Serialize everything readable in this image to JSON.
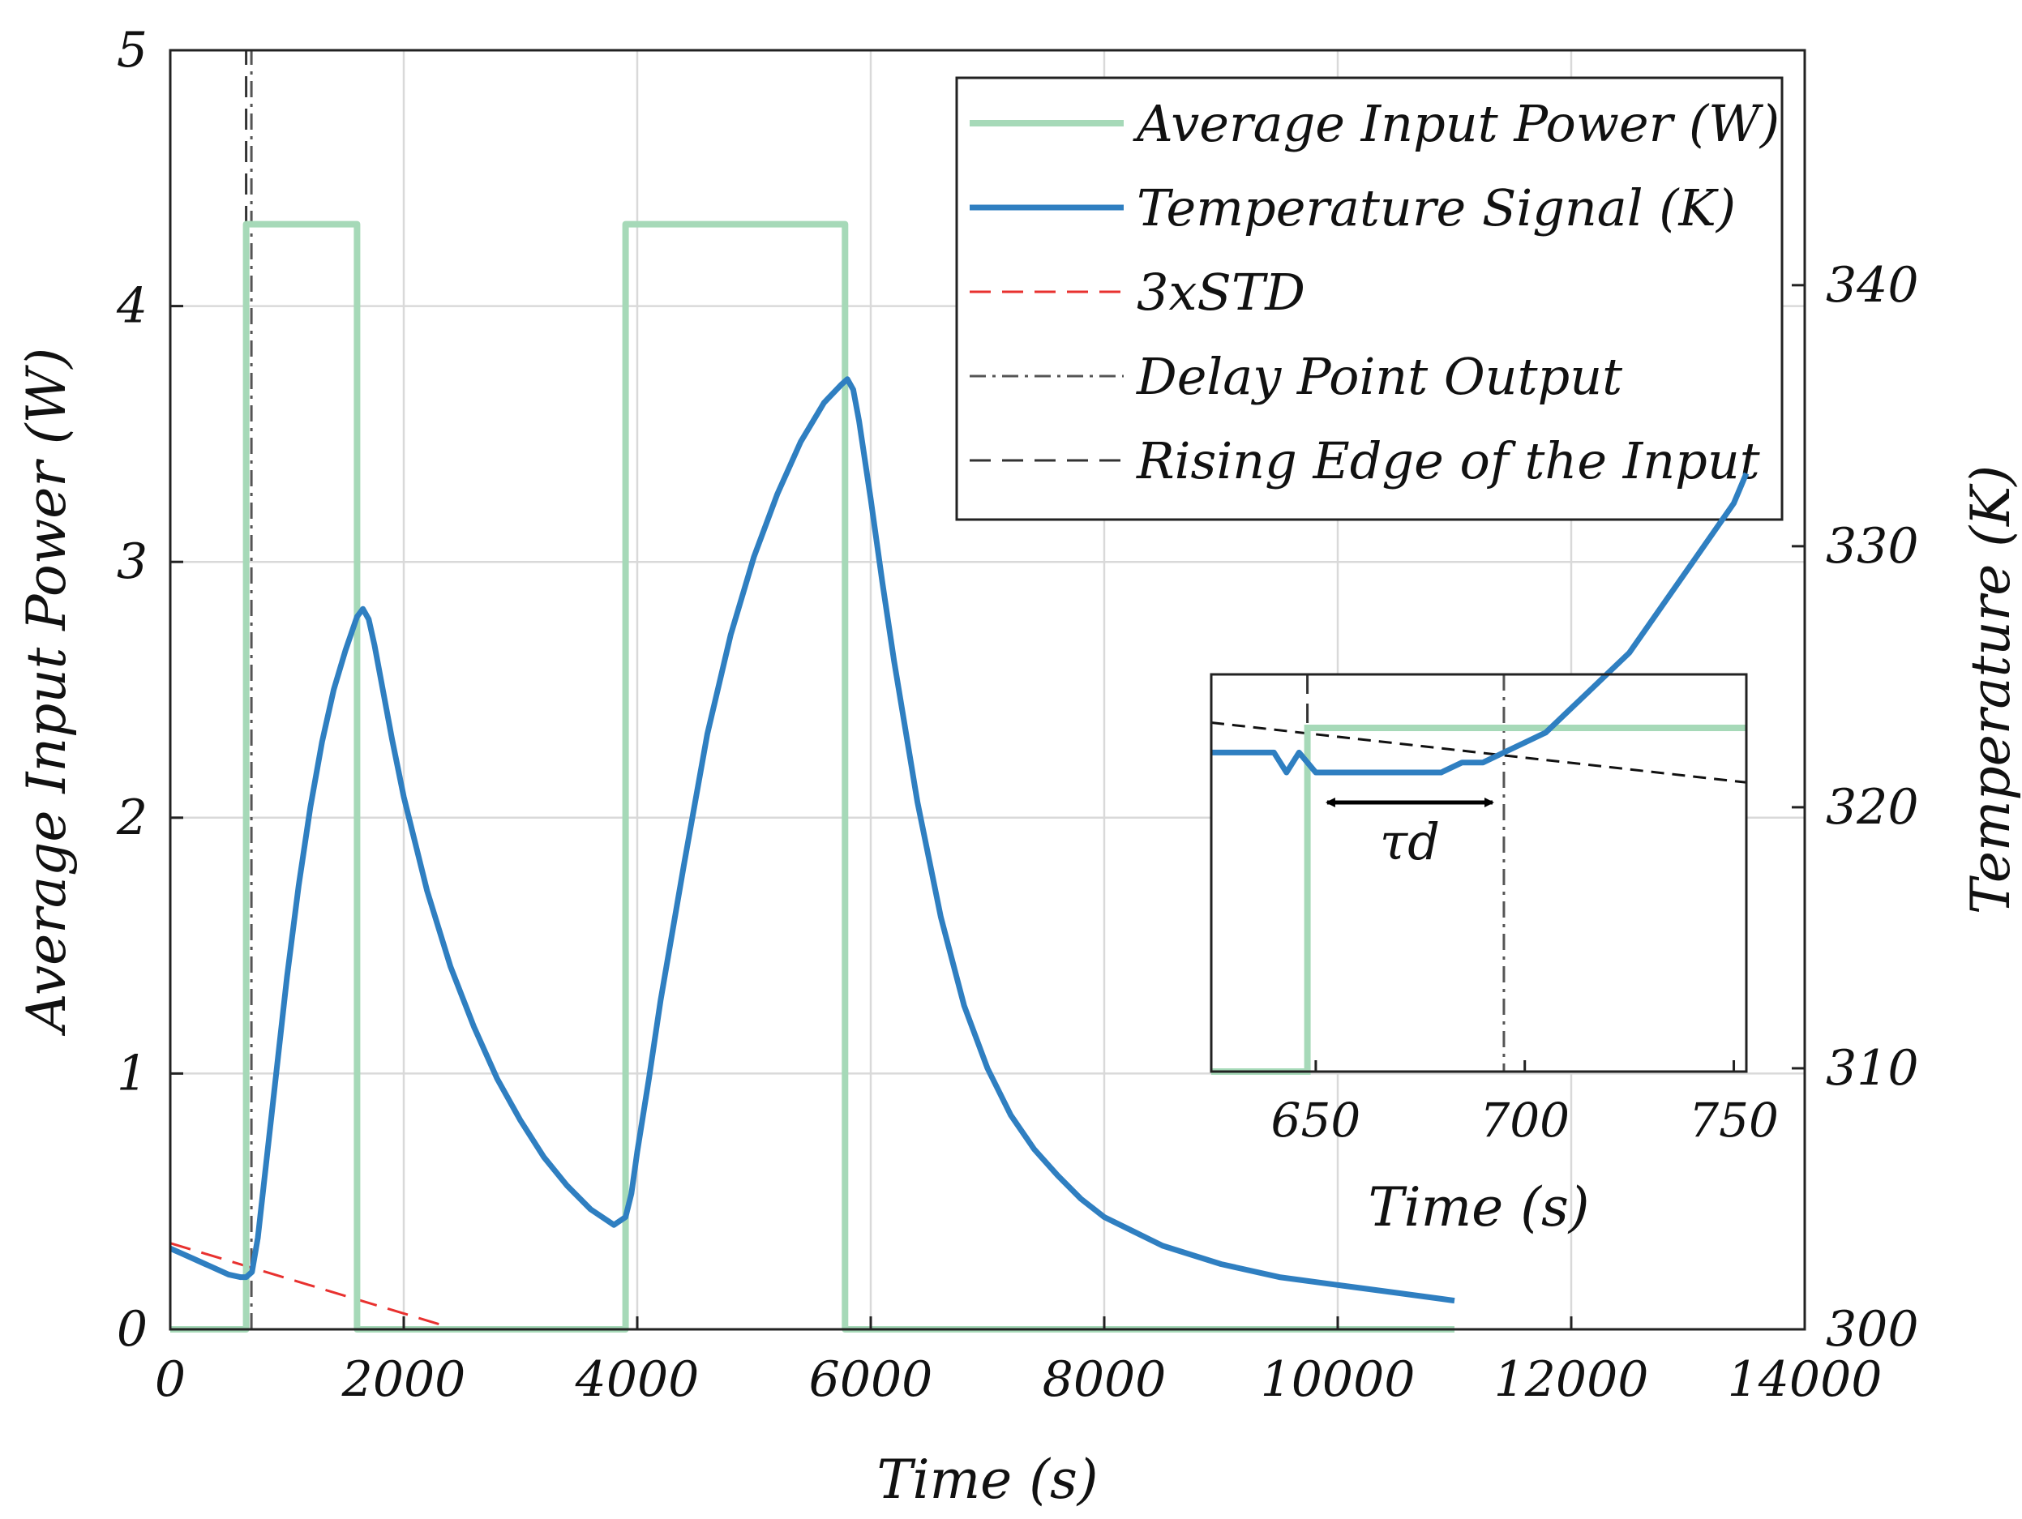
{
  "chart_data": {
    "type": "line",
    "title": "",
    "xlabel": "Time (s)",
    "ylabel_left": "Average Input Power (W)",
    "ylabel_right": "Temperature (K)",
    "xlim": [
      0,
      14000
    ],
    "ylim_left": [
      0,
      5
    ],
    "ylim_right": [
      300,
      349
    ],
    "x_ticks": [
      "0",
      "2000",
      "4000",
      "6000",
      "8000",
      "10000",
      "12000",
      "14000"
    ],
    "x_tick_values": [
      0,
      2000,
      4000,
      6000,
      8000,
      10000,
      12000,
      14000
    ],
    "y_left_ticks": [
      "0",
      "1",
      "2",
      "3",
      "4",
      "5"
    ],
    "y_left_tick_values": [
      0,
      1,
      2,
      3,
      4,
      5
    ],
    "y_right_ticks": [
      "300",
      "310",
      "320",
      "330",
      "340"
    ],
    "y_right_tick_values": [
      300,
      310,
      320,
      330,
      340
    ],
    "grid": true,
    "legend_position": "top-right",
    "series": [
      {
        "name": "Average Input Power (W)",
        "axis": "left",
        "color": "#a6d9b8",
        "style": "solid",
        "x": [
          0,
          650,
          650,
          1600,
          1600,
          3900,
          3900,
          5780,
          5780,
          11000
        ],
        "y": [
          0,
          0,
          4.32,
          4.32,
          0,
          0,
          4.32,
          4.32,
          0,
          0
        ]
      },
      {
        "name": "Temperature Signal (K)",
        "axis": "right",
        "color": "#2f7fc1",
        "style": "solid",
        "x": [
          0,
          100,
          200,
          300,
          400,
          500,
          600,
          650,
          700,
          750,
          800,
          900,
          1000,
          1100,
          1200,
          1300,
          1400,
          1500,
          1600,
          1650,
          1700,
          1750,
          1800,
          1900,
          2000,
          2200,
          2400,
          2600,
          2800,
          3000,
          3200,
          3400,
          3600,
          3800,
          3900,
          3950,
          4000,
          4100,
          4200,
          4400,
          4600,
          4800,
          5000,
          5200,
          5400,
          5600,
          5750,
          5800,
          5850,
          5900,
          6000,
          6100,
          6200,
          6400,
          6600,
          6800,
          7000,
          7200,
          7400,
          7600,
          7800,
          8000,
          8500,
          9000,
          9500,
          10000,
          10500,
          11000
        ],
        "y": [
          303.1,
          302.9,
          302.7,
          302.5,
          302.3,
          302.1,
          302.0,
          302.0,
          302.2,
          303.5,
          305.5,
          309.5,
          313.5,
          317.0,
          320.0,
          322.5,
          324.5,
          326.0,
          327.3,
          327.6,
          327.2,
          326.2,
          325.0,
          322.6,
          320.4,
          316.8,
          313.9,
          311.6,
          309.6,
          308.0,
          306.6,
          305.5,
          304.6,
          304.0,
          304.3,
          305.2,
          306.8,
          309.6,
          312.6,
          317.8,
          322.8,
          326.6,
          329.6,
          332.0,
          334.0,
          335.5,
          336.2,
          336.4,
          336.0,
          334.8,
          331.8,
          328.6,
          325.6,
          320.2,
          315.8,
          312.4,
          310.0,
          308.2,
          306.9,
          305.9,
          305.0,
          304.3,
          303.2,
          302.5,
          302.0,
          301.7,
          301.4,
          301.1
        ]
      },
      {
        "name": "3xSTD",
        "axis": "right",
        "color": "#e8312f",
        "style": "dashed",
        "x": [
          0,
          2450
        ],
        "y": [
          303.3,
          300
        ]
      },
      {
        "name": "Delay Point Output",
        "axis": "left",
        "color": "#555555",
        "style": "dashdot",
        "x": [
          695,
          695
        ],
        "y": [
          0,
          5
        ]
      },
      {
        "name": "Rising Edge of the Input",
        "axis": "left",
        "color": "#333333",
        "style": "dashed",
        "x": [
          650,
          650
        ],
        "y": [
          0,
          5
        ]
      }
    ],
    "inset": {
      "xlabel": "Time (s)",
      "xlim": [
        625,
        753
      ],
      "x_ticks": [
        "650",
        "700",
        "750"
      ],
      "x_tick_values": [
        650,
        700,
        750
      ],
      "annotation": "τd",
      "annotation_from": 650,
      "annotation_to": 695,
      "power": {
        "x": [
          625,
          648,
          648,
          753
        ],
        "y": [
          0,
          0,
          1,
          1
        ]
      },
      "temperature": {
        "x": [
          625,
          640,
          643,
          646,
          650,
          660,
          670,
          680,
          685,
          690,
          695,
          700,
          705,
          710,
          715,
          720,
          725,
          730,
          735,
          740,
          745,
          750,
          753
        ],
        "y": [
          0.32,
          0.32,
          0.3,
          0.32,
          0.3,
          0.3,
          0.3,
          0.3,
          0.31,
          0.31,
          0.32,
          0.33,
          0.34,
          0.36,
          0.38,
          0.4,
          0.42,
          0.45,
          0.48,
          0.51,
          0.54,
          0.57,
          0.6
        ]
      },
      "threshold": {
        "x": [
          625,
          753
        ],
        "y": [
          0.35,
          0.29
        ]
      },
      "delay_x": 695,
      "edge_x": 648
    }
  }
}
